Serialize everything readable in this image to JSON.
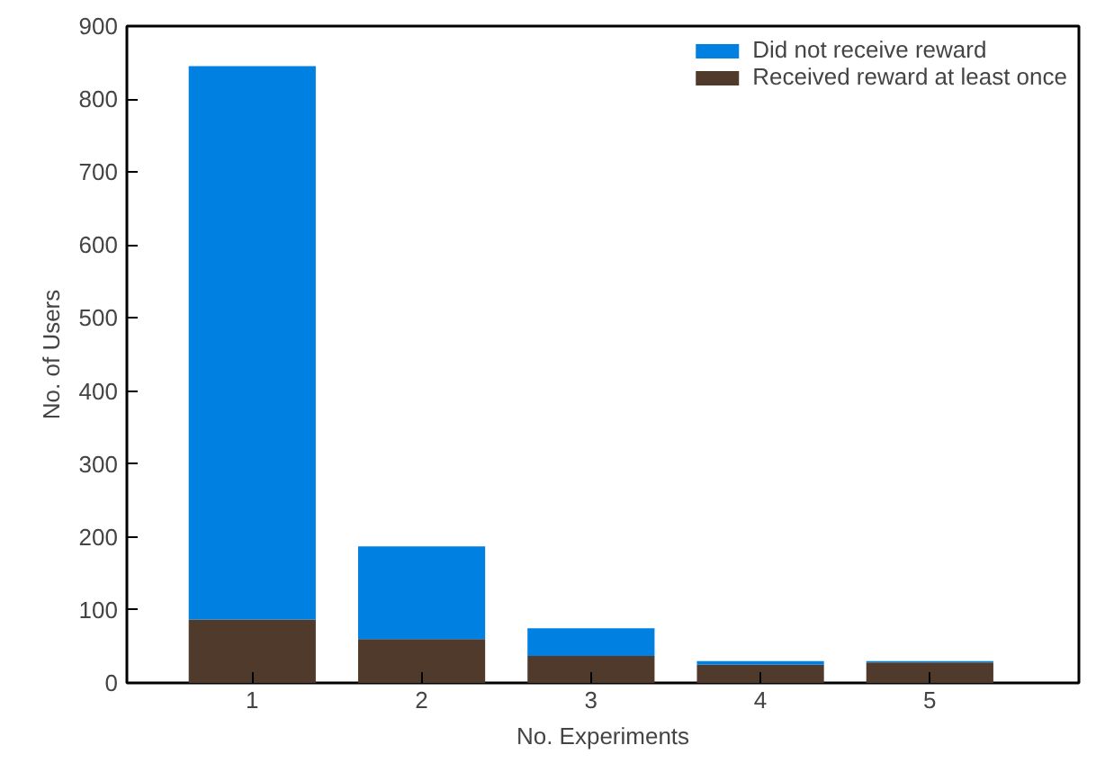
{
  "chart_data": {
    "type": "bar",
    "stacked": true,
    "xlabel": "No. Experiments",
    "ylabel": "No. of Users",
    "categories": [
      "1",
      "2",
      "3",
      "4",
      "5"
    ],
    "series": [
      {
        "name": "Received reward at least once",
        "color": "#4f3a2c",
        "values": [
          87,
          60,
          37,
          25,
          28
        ]
      },
      {
        "name": "Did not receive reward",
        "color": "#0080e0",
        "values": [
          758,
          127,
          38,
          5,
          2
        ]
      }
    ],
    "ylim": [
      0,
      900
    ],
    "yticks": [
      0,
      100,
      200,
      300,
      400,
      500,
      600,
      700,
      800,
      900
    ],
    "grid": false,
    "legend": "top right"
  }
}
